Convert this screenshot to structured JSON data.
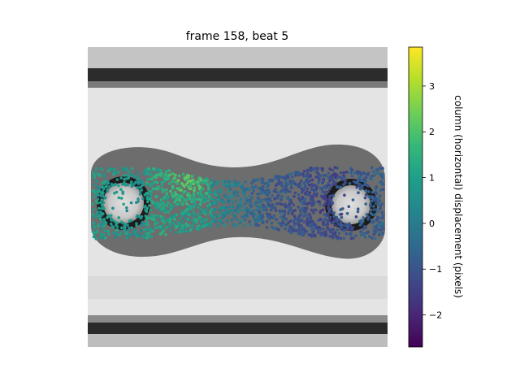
{
  "chart_data": {
    "type": "scatter",
    "title": "frame 158, beat 5",
    "background": "grayscale microscopy image of a dog-bone shaped tissue between two circular posts",
    "overlay": {
      "marker": "circle",
      "colormap": "viridis",
      "n_points_approx": 1800,
      "regions": [
        {
          "name": "left post and left half",
          "typical_value": 0.8
        },
        {
          "name": "left-center peak",
          "typical_value": 2.0
        },
        {
          "name": "center",
          "typical_value": -0.3
        },
        {
          "name": "right half",
          "typical_value": -1.2
        },
        {
          "name": "right post",
          "typical_value": -0.8
        }
      ]
    },
    "colorbar": {
      "label": "column (horizontal) displacement (pixels)",
      "vmin": -2.7,
      "vmax": 3.85,
      "ticks": [
        "3",
        "2",
        "1",
        "0",
        "−1",
        "−2"
      ],
      "tick_values": [
        3,
        2,
        1,
        0,
        -1,
        -2
      ],
      "colors": [
        "#440154",
        "#482878",
        "#3e4989",
        "#31688e",
        "#26828e",
        "#1f9e89",
        "#35b779",
        "#6ece58",
        "#b5de2b",
        "#fde725"
      ]
    }
  }
}
